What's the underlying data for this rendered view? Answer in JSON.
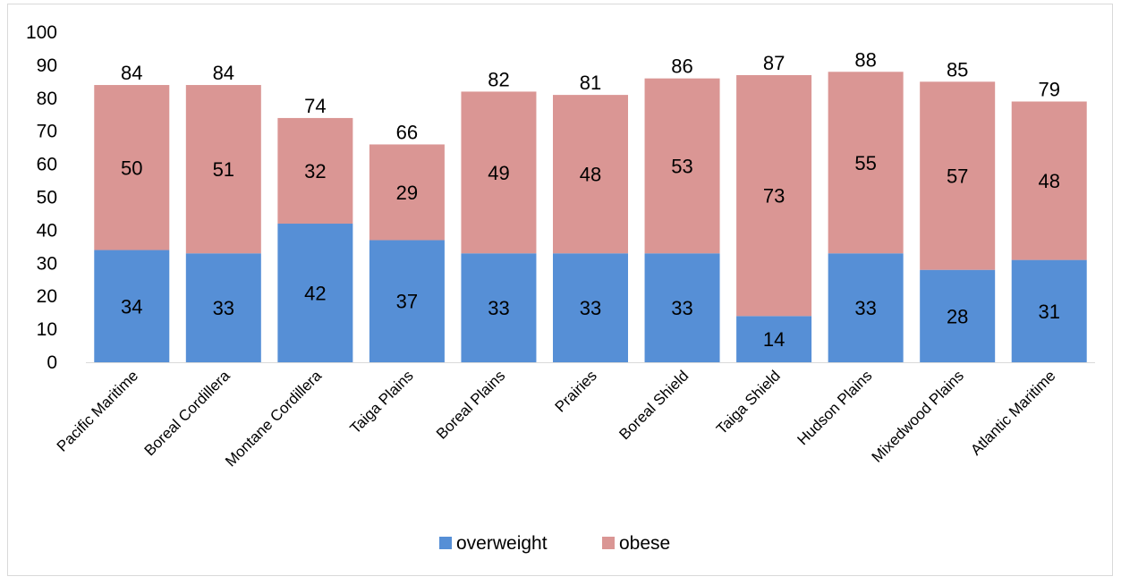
{
  "chart_data": {
    "type": "bar",
    "stacked": true,
    "categories": [
      "Pacific Maritime",
      "Boreal Cordillera",
      "Montane Cordillera",
      "Taiga Plains",
      "Boreal Plains",
      "Prairies",
      "Boreal Shield",
      "Taiga Shield",
      "Hudson Plains",
      "Mixedwood Plains",
      "Atlantic Maritime"
    ],
    "series": [
      {
        "name": "overweight",
        "color": "#568fd6",
        "values": [
          34,
          33,
          42,
          37,
          33,
          33,
          33,
          14,
          33,
          28,
          31
        ]
      },
      {
        "name": "obese",
        "color": "#da9694",
        "values": [
          50,
          51,
          32,
          29,
          49,
          48,
          53,
          73,
          55,
          57,
          48
        ]
      }
    ],
    "totals": [
      84,
      84,
      74,
      66,
      82,
      81,
      86,
      87,
      88,
      85,
      79
    ],
    "title": "",
    "xlabel": "",
    "ylabel": "",
    "ylim": [
      0,
      100
    ],
    "yticks": [
      0,
      10,
      20,
      30,
      40,
      50,
      60,
      70,
      80,
      90,
      100
    ],
    "grid": false,
    "legend": "bottom"
  }
}
